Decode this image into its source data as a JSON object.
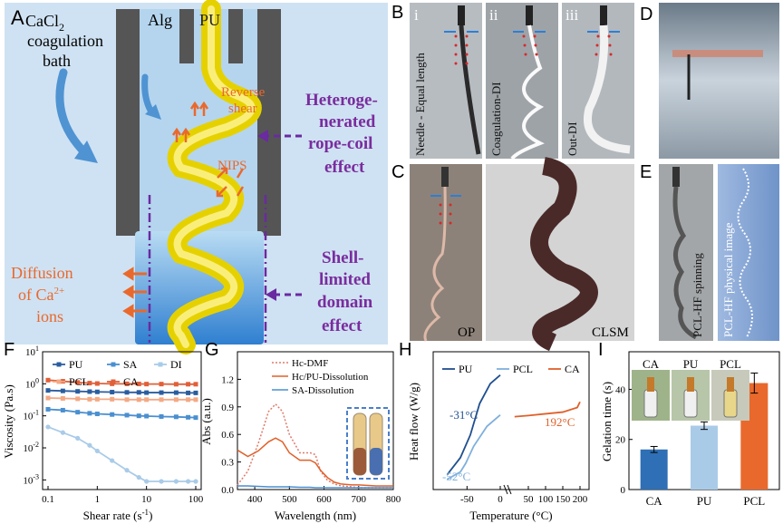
{
  "panel_letters": {
    "A": "A",
    "B": "B",
    "C": "C",
    "D": "D",
    "E": "E",
    "F": "F",
    "G": "G",
    "H": "H",
    "I": "I"
  },
  "panelA": {
    "bath_line1": "CaCl",
    "bath_sub": "2",
    "bath_line2": "coagulation",
    "bath_line3": "bath",
    "alg": "Alg",
    "pu": "PU",
    "reverse1": "Reverse",
    "reverse2": "shear",
    "nips": "NIPS",
    "hetero1": "Heteroge-",
    "hetero2": "nerated",
    "hetero3": "rope-coil",
    "hetero4": "effect",
    "shell1": "Shell-",
    "shell2": "limited",
    "shell3": "domain",
    "shell4": "effect",
    "diff1": "Diffusion",
    "diff2a": "of Ca",
    "diff2sup": "2+",
    "diff3": "ions"
  },
  "panelB": {
    "i": "i",
    "ii": "ii",
    "iii": "iii",
    "cap_i": "Needle - Equal length",
    "cap_ii": "Coagulation-DI",
    "cap_iii": "Out-DI"
  },
  "panelC": {
    "op": "OP",
    "clsm": "CLSM"
  },
  "panelE": {
    "cap1": "PCL-HF spinning",
    "cap2": "PCL-HF physical image"
  },
  "panelF": {
    "ylabel": "Viscosity (Pa.s)",
    "xlabel": "Shear rate (s",
    "xlabel_sup": "-1",
    "xlabel_end": ")",
    "legend": [
      "PU",
      "SA",
      "DI",
      "PCL",
      "CA"
    ]
  },
  "panelG": {
    "ylabel": "Abs (a.u.)",
    "xlabel": "Wavelength (nm)",
    "legend": [
      "Hc-DMF",
      "Hc/PU-Dissolution",
      "SA-Dissolution"
    ]
  },
  "panelH": {
    "ylabel": "Heat flow (W/g)",
    "xlabel": "Temperature (°C)",
    "legend": [
      "PU",
      "PCL",
      "CA"
    ],
    "ann1": "-31°C",
    "ann2": "-52°C",
    "ann3": "192°C"
  },
  "panelI": {
    "ylabel": "Gelation time (s)",
    "photo_labels": [
      "CA",
      "PU",
      "PCL"
    ]
  },
  "chart_data": [
    {
      "panel": "F",
      "type": "line",
      "title": "",
      "xlabel": "Shear rate (s-1)",
      "ylabel": "Viscosity (Pa.s)",
      "xscale": "log",
      "yscale": "log",
      "xlim": [
        0.1,
        100
      ],
      "ylim": [
        0.0005,
        10
      ],
      "xticks": [
        "0.1",
        "1",
        "10",
        "100"
      ],
      "yticks": [
        "10^-3",
        "10^-2",
        "10^-1",
        "10^0",
        "10^1"
      ],
      "x": [
        0.1,
        0.2,
        0.4,
        0.7,
        1,
        2,
        4,
        7,
        10,
        20,
        40,
        70,
        100
      ],
      "series": [
        {
          "name": "PU",
          "color": "#2a5d9f",
          "values": [
            0.62,
            0.6,
            0.58,
            0.57,
            0.56,
            0.55,
            0.54,
            0.54,
            0.53,
            0.53,
            0.53,
            0.52,
            0.52
          ]
        },
        {
          "name": "SA",
          "color": "#4a8fd0",
          "values": [
            0.16,
            0.15,
            0.13,
            0.12,
            0.115,
            0.11,
            0.105,
            0.1,
            0.098,
            0.095,
            0.093,
            0.09,
            0.088
          ]
        },
        {
          "name": "DI",
          "color": "#a9cbe8",
          "values": [
            0.045,
            0.03,
            0.02,
            0.012,
            0.008,
            0.004,
            0.002,
            0.0012,
            0.0009,
            0.0009,
            0.0009,
            0.0009,
            0.0009
          ]
        },
        {
          "name": "PCL",
          "color": "#f2a985",
          "values": [
            0.36,
            0.35,
            0.34,
            0.33,
            0.33,
            0.33,
            0.32,
            0.32,
            0.32,
            0.32,
            0.32,
            0.32,
            0.32
          ]
        },
        {
          "name": "CA",
          "color": "#e0603a",
          "values": [
            1.3,
            1.2,
            1.1,
            1.05,
            1.02,
            1.0,
            1.0,
            0.99,
            0.98,
            0.98,
            0.97,
            0.97,
            0.97
          ]
        }
      ],
      "legend": "top"
    },
    {
      "panel": "G",
      "type": "line",
      "title": "",
      "xlabel": "Wavelength (nm)",
      "ylabel": "Abs (a.u.)",
      "xlim": [
        350,
        800
      ],
      "ylim": [
        0,
        1.5
      ],
      "xticks": [
        400,
        500,
        600,
        700,
        800
      ],
      "yticks": [
        0.0,
        0.3,
        0.6,
        0.9,
        1.2
      ],
      "x": [
        350,
        380,
        410,
        440,
        460,
        480,
        500,
        530,
        560,
        575,
        590,
        610,
        630,
        650,
        680,
        700,
        750,
        800
      ],
      "series": [
        {
          "name": "Hc-DMF",
          "color": "#e07a6a",
          "style": "dotted",
          "values": [
            0.05,
            0.2,
            0.5,
            0.85,
            0.93,
            0.85,
            0.6,
            0.4,
            0.4,
            0.38,
            0.2,
            0.1,
            0.06,
            0.04,
            0.03,
            0.02,
            0.02,
            0.02
          ]
        },
        {
          "name": "Hc/PU-Dissolution",
          "color": "#e0602a",
          "values": [
            0.43,
            0.36,
            0.42,
            0.52,
            0.56,
            0.52,
            0.4,
            0.32,
            0.32,
            0.29,
            0.21,
            0.13,
            0.08,
            0.06,
            0.05,
            0.05,
            0.04,
            0.04
          ]
        },
        {
          "name": "SA-Dissolution",
          "color": "#4a8fd0",
          "values": [
            0.04,
            0.04,
            0.035,
            0.03,
            0.03,
            0.03,
            0.03,
            0.025,
            0.025,
            0.02,
            0.02,
            0.02,
            0.02,
            0.02,
            0.02,
            0.02,
            0.02,
            0.02
          ]
        }
      ],
      "legend": "top-right"
    },
    {
      "panel": "H",
      "type": "line",
      "title": "",
      "xlabel": "Temperature (°C)",
      "ylabel": "Heat flow (W/g)",
      "xticks": [
        -50,
        0,
        50,
        100,
        150,
        200
      ],
      "broken_axis": true,
      "series": [
        {
          "name": "PU",
          "color": "#1f4f8f",
          "x": [
            -80,
            -60,
            -45,
            -31,
            -15,
            0
          ],
          "values": [
            -0.9,
            -0.6,
            -0.2,
            0.35,
            0.7,
            0.85
          ]
        },
        {
          "name": "PCL",
          "color": "#7fb0dc",
          "x": [
            -80,
            -60,
            -52,
            -40,
            -20,
            0
          ],
          "values": [
            -0.98,
            -0.85,
            -0.7,
            -0.4,
            -0.05,
            0.15
          ]
        },
        {
          "name": "CA",
          "color": "#e0602a",
          "x": [
            10,
            50,
            100,
            150,
            192,
            200
          ],
          "values": [
            0.12,
            0.14,
            0.17,
            0.2,
            0.28,
            0.38
          ]
        }
      ],
      "legend": "top"
    },
    {
      "panel": "I",
      "type": "bar",
      "title": "",
      "ylabel": "Gelation time (s)",
      "categories": [
        "CA",
        "PU",
        "PCL"
      ],
      "values": [
        16,
        25.5,
        42.5
      ],
      "errors": [
        1.2,
        1.5,
        4
      ],
      "colors": [
        "#2f6fb5",
        "#a9cbe8",
        "#e9692c"
      ],
      "ylim": [
        0,
        55
      ],
      "yticks": [
        0,
        20,
        40
      ]
    }
  ]
}
